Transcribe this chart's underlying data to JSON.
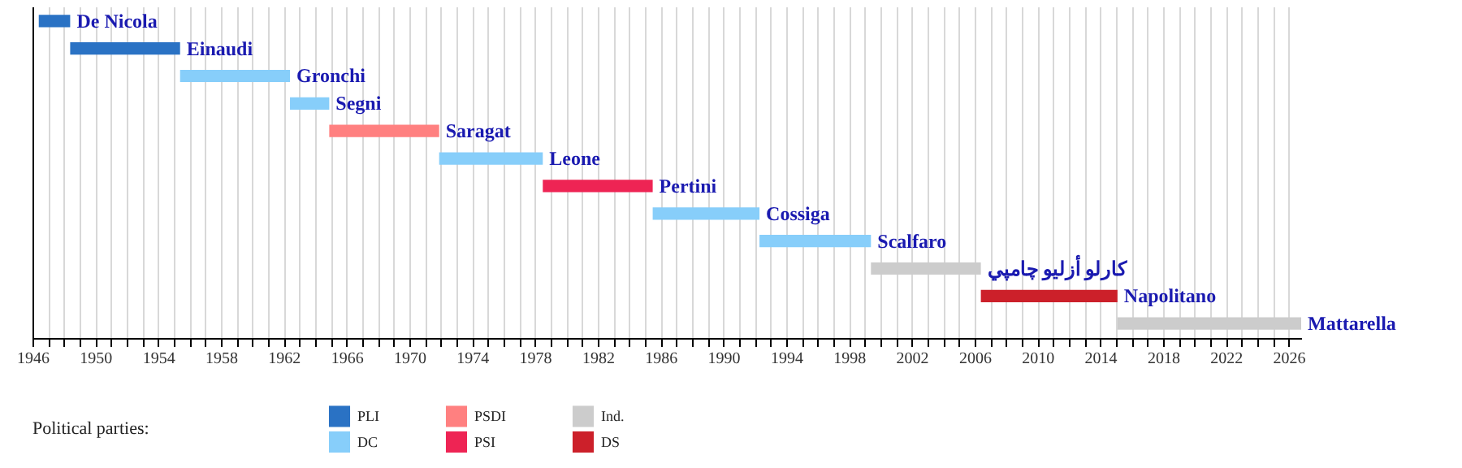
{
  "chart_data": {
    "type": "bar",
    "orientation": "horizontal",
    "categories": [
      "De Nicola",
      "Einaudi",
      "Gronchi",
      "Segni",
      "Saragat",
      "Leone",
      "Pertini",
      "Cossiga",
      "Scalfaro",
      "كارلو أزليو چامپي",
      "Napolitano",
      "Mattarella"
    ],
    "series": [
      {
        "name": "PLI",
        "color": "#2a72c4",
        "base": [
          1946.4,
          1948.4,
          null,
          null,
          null,
          null,
          null,
          null,
          null,
          null,
          null,
          null
        ],
        "values": [
          2.0,
          7.0,
          null,
          null,
          null,
          null,
          null,
          null,
          null,
          null,
          null,
          null
        ]
      },
      {
        "name": "DC",
        "color": "#87cefa",
        "base": [
          null,
          null,
          1955.4,
          1962.4,
          null,
          1971.9,
          null,
          1985.5,
          1992.3,
          null,
          null,
          null
        ],
        "values": [
          null,
          null,
          7.0,
          2.5,
          null,
          6.6,
          null,
          6.8,
          7.1,
          null,
          null,
          null
        ]
      },
      {
        "name": "PSDI",
        "color": "#ff8080",
        "base": [
          null,
          null,
          null,
          null,
          1964.9,
          null,
          null,
          null,
          null,
          null,
          null,
          null
        ],
        "values": [
          null,
          null,
          null,
          null,
          7.0,
          null,
          null,
          null,
          null,
          null,
          null,
          null
        ]
      },
      {
        "name": "PSI",
        "color": "#ee2454",
        "base": [
          null,
          null,
          null,
          null,
          null,
          null,
          1978.5,
          null,
          null,
          null,
          null,
          null
        ],
        "values": [
          null,
          null,
          null,
          null,
          null,
          null,
          7.0,
          null,
          null,
          null,
          null,
          null
        ]
      },
      {
        "name": "Ind.",
        "color": "#cccccc",
        "base": [
          null,
          null,
          null,
          null,
          null,
          null,
          null,
          null,
          null,
          1999.4,
          null,
          2015.1
        ],
        "values": [
          null,
          null,
          null,
          null,
          null,
          null,
          null,
          null,
          null,
          7.0,
          null,
          11.7
        ]
      },
      {
        "name": "DS",
        "color": "#cc202a",
        "base": [
          null,
          null,
          null,
          null,
          null,
          null,
          null,
          null,
          null,
          null,
          2006.4,
          null
        ],
        "values": [
          null,
          null,
          null,
          null,
          null,
          null,
          null,
          null,
          null,
          null,
          8.7,
          null
        ]
      }
    ],
    "legend_title": "Political parties:",
    "legend": "bottom left",
    "grid": "x",
    "tick_labels": "x",
    "xlim": [
      1946,
      2026.8
    ],
    "xticks": [
      1946,
      {
        "value": 1947,
        "label": null
      },
      {
        "value": 1948,
        "label": null
      },
      {
        "value": 1949,
        "label": null
      },
      1950,
      {
        "value": 1951,
        "label": null
      },
      {
        "value": 1952,
        "label": null
      },
      {
        "value": 1953,
        "label": null
      },
      1954,
      {
        "value": 1955,
        "label": null
      },
      {
        "value": 1956,
        "label": null
      },
      {
        "value": 1957,
        "label": null
      },
      1958,
      {
        "value": 1959,
        "label": null
      },
      {
        "value": 1960,
        "label": null
      },
      {
        "value": 1961,
        "label": null
      },
      1962,
      {
        "value": 1963,
        "label": null
      },
      {
        "value": 1964,
        "label": null
      },
      {
        "value": 1965,
        "label": null
      },
      1966,
      {
        "value": 1967,
        "label": null
      },
      {
        "value": 1968,
        "label": null
      },
      {
        "value": 1969,
        "label": null
      },
      1970,
      {
        "value": 1971,
        "label": null
      },
      {
        "value": 1972,
        "label": null
      },
      {
        "value": 1973,
        "label": null
      },
      1974,
      {
        "value": 1975,
        "label": null
      },
      {
        "value": 1976,
        "label": null
      },
      {
        "value": 1977,
        "label": null
      },
      1978,
      {
        "value": 1979,
        "label": null
      },
      {
        "value": 1980,
        "label": null
      },
      {
        "value": 1981,
        "label": null
      },
      1982,
      {
        "value": 1983,
        "label": null
      },
      {
        "value": 1984,
        "label": null
      },
      {
        "value": 1985,
        "label": null
      },
      1986,
      {
        "value": 1987,
        "label": null
      },
      {
        "value": 1988,
        "label": null
      },
      {
        "value": 1989,
        "label": null
      },
      1990,
      {
        "value": 1991,
        "label": null
      },
      {
        "value": 1992,
        "label": null
      },
      {
        "value": 1993,
        "label": null
      },
      1994,
      {
        "value": 1995,
        "label": null
      },
      {
        "value": 1996,
        "label": null
      },
      {
        "value": 1997,
        "label": null
      },
      1998,
      {
        "value": 1999,
        "label": null
      },
      {
        "value": 2000,
        "label": null
      },
      {
        "value": 2001,
        "label": null
      },
      2002,
      {
        "value": 2003,
        "label": null
      },
      {
        "value": 2004,
        "label": null
      },
      {
        "value": 2005,
        "label": null
      },
      2006,
      {
        "value": 2007,
        "label": null
      },
      {
        "value": 2008,
        "label": null
      },
      {
        "value": 2009,
        "label": null
      },
      2010,
      {
        "value": 2011,
        "label": null
      },
      {
        "value": 2012,
        "label": null
      },
      {
        "value": 2013,
        "label": null
      },
      2014,
      {
        "value": 2015,
        "label": null
      },
      {
        "value": 2016,
        "label": null
      },
      {
        "value": 2017,
        "label": null
      },
      2018,
      {
        "value": 2019,
        "label": null
      },
      {
        "value": 2020,
        "label": null
      },
      {
        "value": 2021,
        "label": null
      },
      2022,
      {
        "value": 2023,
        "label": null
      },
      {
        "value": 2024,
        "label": null
      },
      {
        "value": 2025,
        "label": null
      },
      2026
    ]
  }
}
